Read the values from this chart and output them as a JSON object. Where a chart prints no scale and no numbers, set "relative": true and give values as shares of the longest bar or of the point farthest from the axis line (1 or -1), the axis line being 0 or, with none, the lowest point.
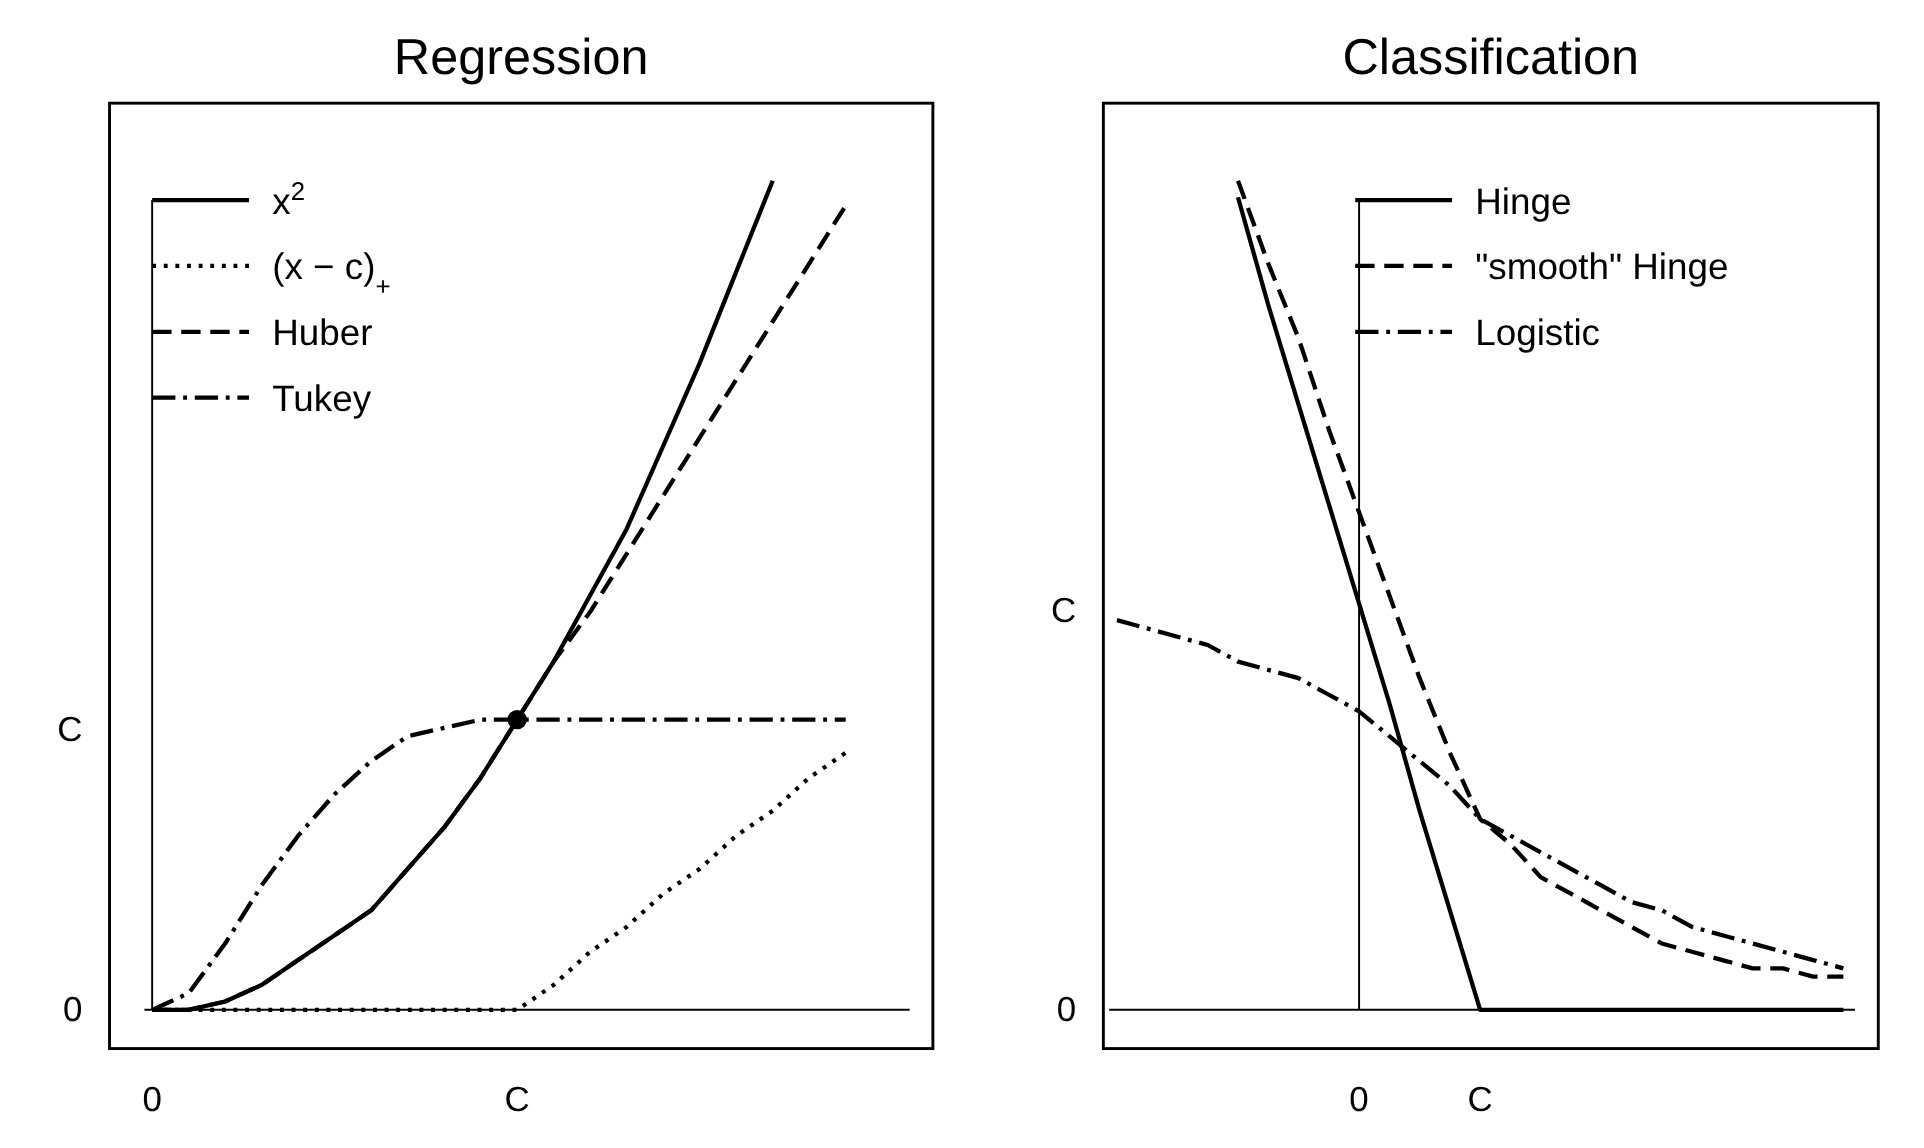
{
  "chart_data": [
    {
      "type": "line",
      "title": "Regression",
      "relative": true,
      "legend": "top left",
      "categories": [
        "0",
        null,
        null,
        null,
        null,
        null,
        null,
        null,
        null,
        null,
        "C",
        null,
        null,
        null,
        null,
        null,
        null,
        null,
        null,
        null
      ],
      "annotations": [
        "0",
        "C"
      ],
      "series": [
        {
          "name": "x$^{2}$",
          "color": "#000000",
          "line_style": "solid",
          "values": [
            0,
            0,
            0.01,
            0.03,
            0.06,
            0.09,
            0.12,
            0.17,
            0.22,
            0.28,
            0.35,
            0.42,
            0.5,
            0.58,
            0.68,
            0.78,
            0.89,
            1,
            null,
            null
          ]
        },
        {
          "name": "(x − c)$_{+}$",
          "color": "#000000",
          "line_style": "dotted",
          "values": [
            0,
            0,
            0,
            0,
            0,
            0,
            0,
            0,
            0,
            0,
            0,
            0.03,
            0.07,
            0.1,
            0.14,
            0.17,
            0.21,
            0.24,
            0.28,
            0.31
          ]
        },
        {
          "name": "Huber",
          "color": "#000000",
          "line_style": "dashed",
          "values": [
            0,
            0,
            0.01,
            0.03,
            0.06,
            0.09,
            0.12,
            0.17,
            0.22,
            0.28,
            0.35,
            0.42,
            0.48,
            0.55,
            0.62,
            0.69,
            0.76,
            0.83,
            0.9,
            0.97
          ]
        },
        {
          "name": "Tukey",
          "color": "#000000",
          "line_style": "dashdot",
          "values": [
            0,
            0.02,
            0.08,
            0.15,
            0.21,
            0.26,
            0.3,
            0.33,
            0.34,
            0.35,
            0.35,
            0.35,
            0.35,
            0.35,
            0.35,
            0.35,
            0.35,
            0.35,
            0.35,
            0.35
          ]
        },
        {
          "type": "scatter",
          "color": "#000000",
          "marker": "circle",
          "x": [
            "C"
          ],
          "values": [
            0.35
          ]
        }
      ]
    },
    {
      "type": "line",
      "title": "Classification",
      "relative": true,
      "legend": "top",
      "categories": [
        null,
        null,
        null,
        null,
        null,
        null,
        null,
        null,
        "0",
        null,
        null,
        null,
        "C",
        null,
        null,
        null,
        null,
        null,
        null,
        null,
        null,
        null,
        null,
        null,
        null
      ],
      "annotations": [
        "0",
        "C"
      ],
      "series": [
        {
          "name": "Hinge",
          "color": "#000000",
          "line_style": "solid",
          "values": [
            null,
            null,
            null,
            null,
            0.98,
            0.85,
            0.73,
            0.61,
            0.49,
            0.37,
            0.24,
            0.12,
            0,
            0,
            0,
            0,
            0,
            0,
            0,
            0,
            0,
            0,
            0,
            0,
            0
          ]
        },
        {
          "name": "\"smooth\" Hinge",
          "color": "#000000",
          "line_style": "dashed",
          "values": [
            null,
            null,
            null,
            null,
            1,
            0.9,
            0.81,
            0.7,
            0.6,
            0.5,
            0.4,
            0.31,
            0.23,
            0.2,
            0.16,
            0.14,
            0.12,
            0.1,
            0.08,
            0.07,
            0.06,
            0.05,
            0.05,
            0.04,
            0.04
          ]
        },
        {
          "name": "Logistic",
          "color": "#000000",
          "line_style": "dashdot",
          "values": [
            0.47,
            0.46,
            0.45,
            0.44,
            0.42,
            0.41,
            0.4,
            0.38,
            0.36,
            0.33,
            0.3,
            0.27,
            0.23,
            0.21,
            0.19,
            0.17,
            0.15,
            0.13,
            0.12,
            0.1,
            0.09,
            0.08,
            0.07,
            0.06,
            0.05
          ]
        }
      ]
    }
  ]
}
